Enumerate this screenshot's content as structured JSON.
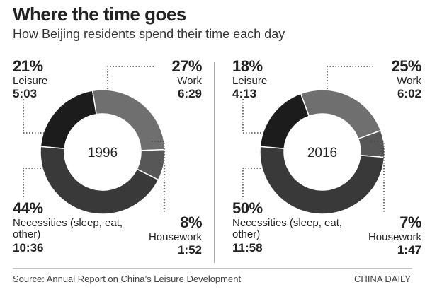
{
  "title": "Where the time goes",
  "subtitle": "How Beijing residents spend their time each day",
  "source": "Source: Annual Report on China’s Leisure Development",
  "credit": "CHINA DAILY",
  "chart_data": [
    {
      "type": "donut",
      "center_label": "1996",
      "categories": [
        "Leisure",
        "Work",
        "Housework",
        "Necessities (sleep, eat, other)"
      ],
      "values": [
        21,
        27,
        8,
        44
      ],
      "value_labels": [
        "21%",
        "27%",
        "8%",
        "44%"
      ],
      "times": [
        "5:03",
        "6:29",
        "1:52",
        "10:36"
      ],
      "colors": [
        "#1c1c1c",
        "#6f6f6f",
        "#575757",
        "#393939"
      ]
    },
    {
      "type": "donut",
      "center_label": "2016",
      "categories": [
        "Leisure",
        "Work",
        "Housework",
        "Necessities (sleep, eat, other)"
      ],
      "values": [
        18,
        25,
        7,
        50
      ],
      "value_labels": [
        "18%",
        "25%",
        "7%",
        "50%"
      ],
      "times": [
        "4:13",
        "6:02",
        "1:47",
        "11:58"
      ],
      "colors": [
        "#1c1c1c",
        "#6f6f6f",
        "#575757",
        "#393939"
      ]
    }
  ]
}
